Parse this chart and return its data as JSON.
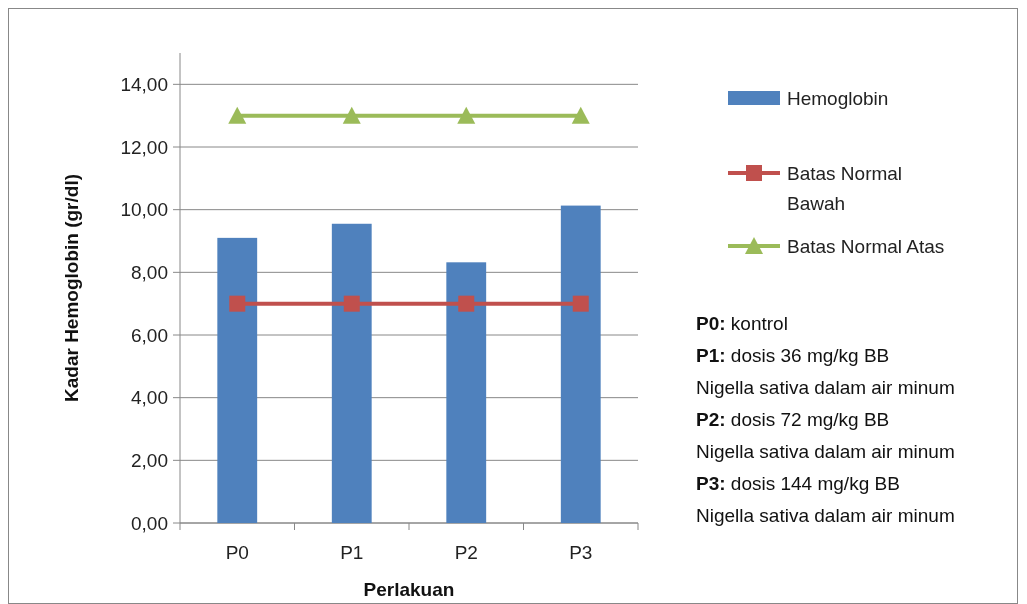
{
  "chart_data": {
    "type": "bar",
    "categories": [
      "P0",
      "P1",
      "P2",
      "P3"
    ],
    "xlabel": "Perlakuan",
    "ylabel": "Kadar Hemoglobin (gr/dl)",
    "series": [
      {
        "name": "Hemoglobin",
        "color": "#4f81bd",
        "values": [
          9.1,
          9.55,
          8.32,
          10.13
        ]
      },
      {
        "name": "Batas Normal Bawah",
        "type": "line",
        "marker": "square",
        "color": "#c0504d",
        "values": [
          7,
          7,
          7,
          7
        ]
      },
      {
        "name": "Batas Normal Atas",
        "type": "line",
        "marker": "triangle",
        "color": "#9bbb59",
        "values": [
          13,
          13,
          13,
          13
        ]
      }
    ],
    "ylim": [
      0,
      15
    ],
    "yticks": [
      {
        "value": 0,
        "label": "0,00"
      },
      {
        "value": 2,
        "label": "2,00"
      },
      {
        "value": 4,
        "label": "4,00"
      },
      {
        "value": 6,
        "label": "6,00"
      },
      {
        "value": 8,
        "label": "8,00"
      },
      {
        "value": 10,
        "label": "10,00"
      },
      {
        "value": 12,
        "label": "12,00"
      },
      {
        "value": 14,
        "label": "14,00"
      }
    ],
    "grid": "y",
    "legend": "right",
    "annotations": [
      "P0: kontrol",
      "P1: dosis 36 mg/kg BB",
      "Nigella sativa dalam air minum",
      "P2: dosis 72 mg/kg BB",
      "Nigella sativa dalam air minum",
      "P3: dosis 144 mg/kg BB",
      "Nigella sativa dalam air minum"
    ]
  }
}
